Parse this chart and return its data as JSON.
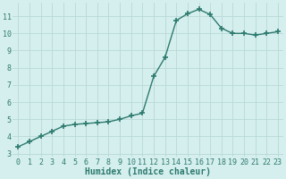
{
  "x": [
    0,
    1,
    2,
    3,
    4,
    5,
    6,
    7,
    8,
    9,
    10,
    11,
    12,
    13,
    14,
    15,
    16,
    17,
    18,
    19,
    20,
    21,
    22,
    23
  ],
  "y": [
    3.4,
    3.7,
    4.0,
    4.3,
    4.6,
    4.7,
    4.75,
    4.8,
    4.85,
    5.0,
    5.2,
    5.35,
    7.5,
    8.6,
    10.75,
    11.15,
    11.4,
    11.1,
    10.3,
    10.0,
    10.0,
    9.9,
    10.0,
    10.1
  ],
  "line_color": "#2d7a6e",
  "marker": "+",
  "marker_size": 4,
  "marker_linewidth": 1.2,
  "bg_color": "#d5efee",
  "grid_color": "#b8d8d6",
  "xlabel": "Humidex (Indice chaleur)",
  "xlabel_color": "#2d7a6e",
  "xlabel_fontsize": 7,
  "tick_color": "#2d7a6e",
  "tick_fontsize": 6,
  "ylim": [
    2.8,
    11.8
  ],
  "xlim": [
    -0.5,
    23.5
  ],
  "yticks": [
    3,
    4,
    5,
    6,
    7,
    8,
    9,
    10,
    11
  ],
  "xticks": [
    0,
    1,
    2,
    3,
    4,
    5,
    6,
    7,
    8,
    9,
    10,
    11,
    12,
    13,
    14,
    15,
    16,
    17,
    18,
    19,
    20,
    21,
    22,
    23
  ],
  "line_width": 1.0,
  "linestyle": "-"
}
